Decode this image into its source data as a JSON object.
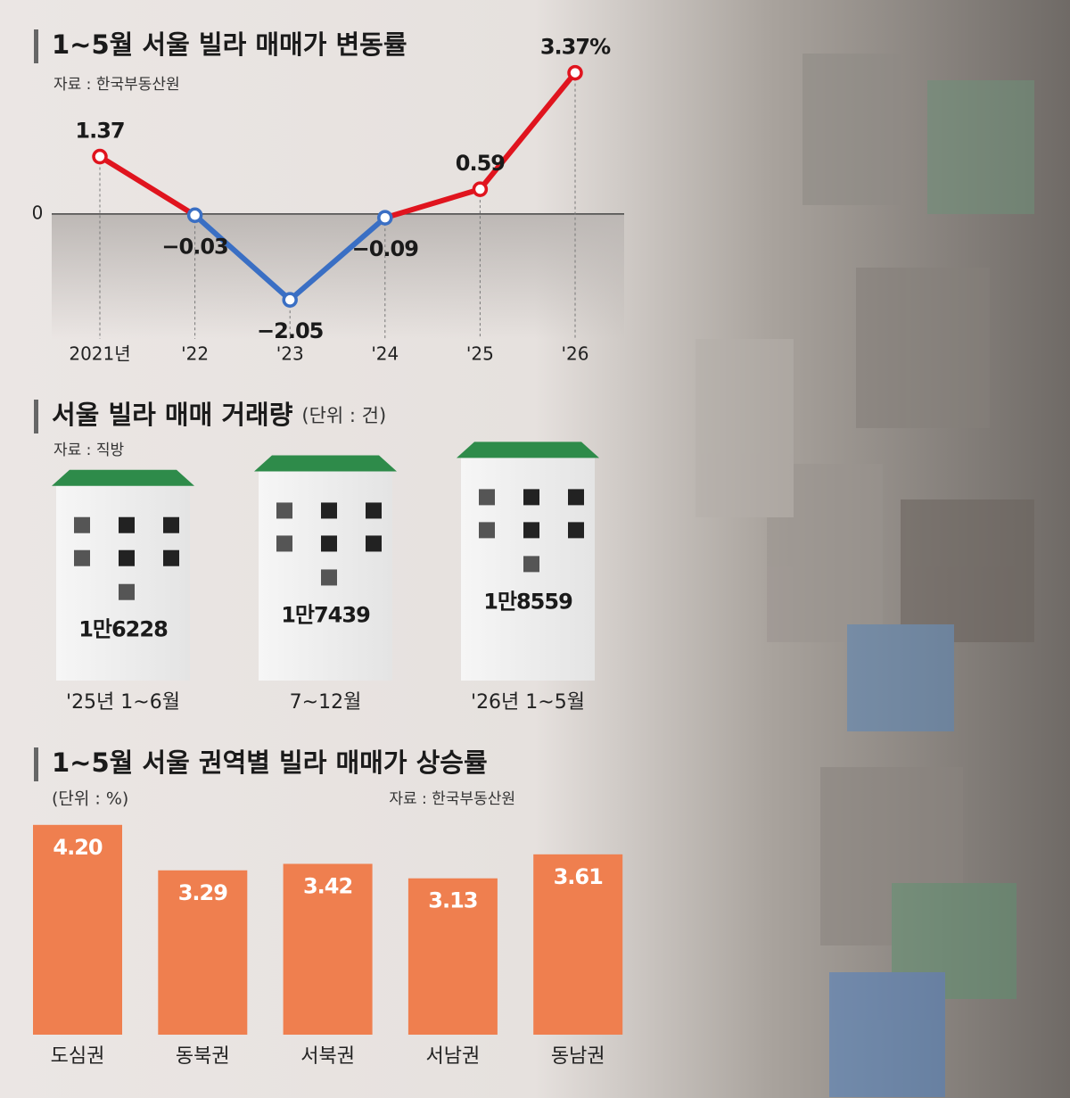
{
  "chart_data": [
    {
      "type": "line",
      "title": "1~5월 서울 빌라 매매가 변동률",
      "subtitle": "자료 : 한국부동산원",
      "categories": [
        "2021년",
        "'22",
        "'23",
        "'24",
        "'25",
        "'26"
      ],
      "values": [
        1.37,
        -0.03,
        -2.05,
        -0.09,
        0.59,
        3.37
      ],
      "value_labels": [
        "1.37",
        "−0.03",
        "−2.05",
        "−0.09",
        "0.59",
        "3.37%"
      ],
      "ylim": [
        -2.6,
        4.0
      ],
      "yticks": [
        0
      ],
      "up_color": "#e0141e",
      "down_color": "#3a6fc4"
    },
    {
      "type": "pictogram",
      "title": "서울 빌라 매매 거래량",
      "unit": "(단위 : 건)",
      "subtitle": "자료 : 직방",
      "categories": [
        "'25년 1~6월",
        "7~12월",
        "'26년 1~5월"
      ],
      "values": [
        16228,
        17439,
        18559
      ],
      "value_labels": [
        "1만6228",
        "1만7439",
        "1만8559"
      ],
      "ylim": [
        0,
        20000
      ],
      "color": "#2e8b4a"
    },
    {
      "type": "bar",
      "title": "1~5월 서울 권역별 빌라 매매가 상승률",
      "unit": "(단위 : %)",
      "subtitle": "자료 : 한국부동산원",
      "categories": [
        "도심권",
        "동북권",
        "서북권",
        "서남권",
        "동남권"
      ],
      "values": [
        4.2,
        3.29,
        3.42,
        3.13,
        3.61
      ],
      "value_labels": [
        "4.20",
        "3.29",
        "3.42",
        "3.13",
        "3.61"
      ],
      "ylim": [
        0,
        4.5
      ],
      "color": "#ef7f4f"
    }
  ]
}
